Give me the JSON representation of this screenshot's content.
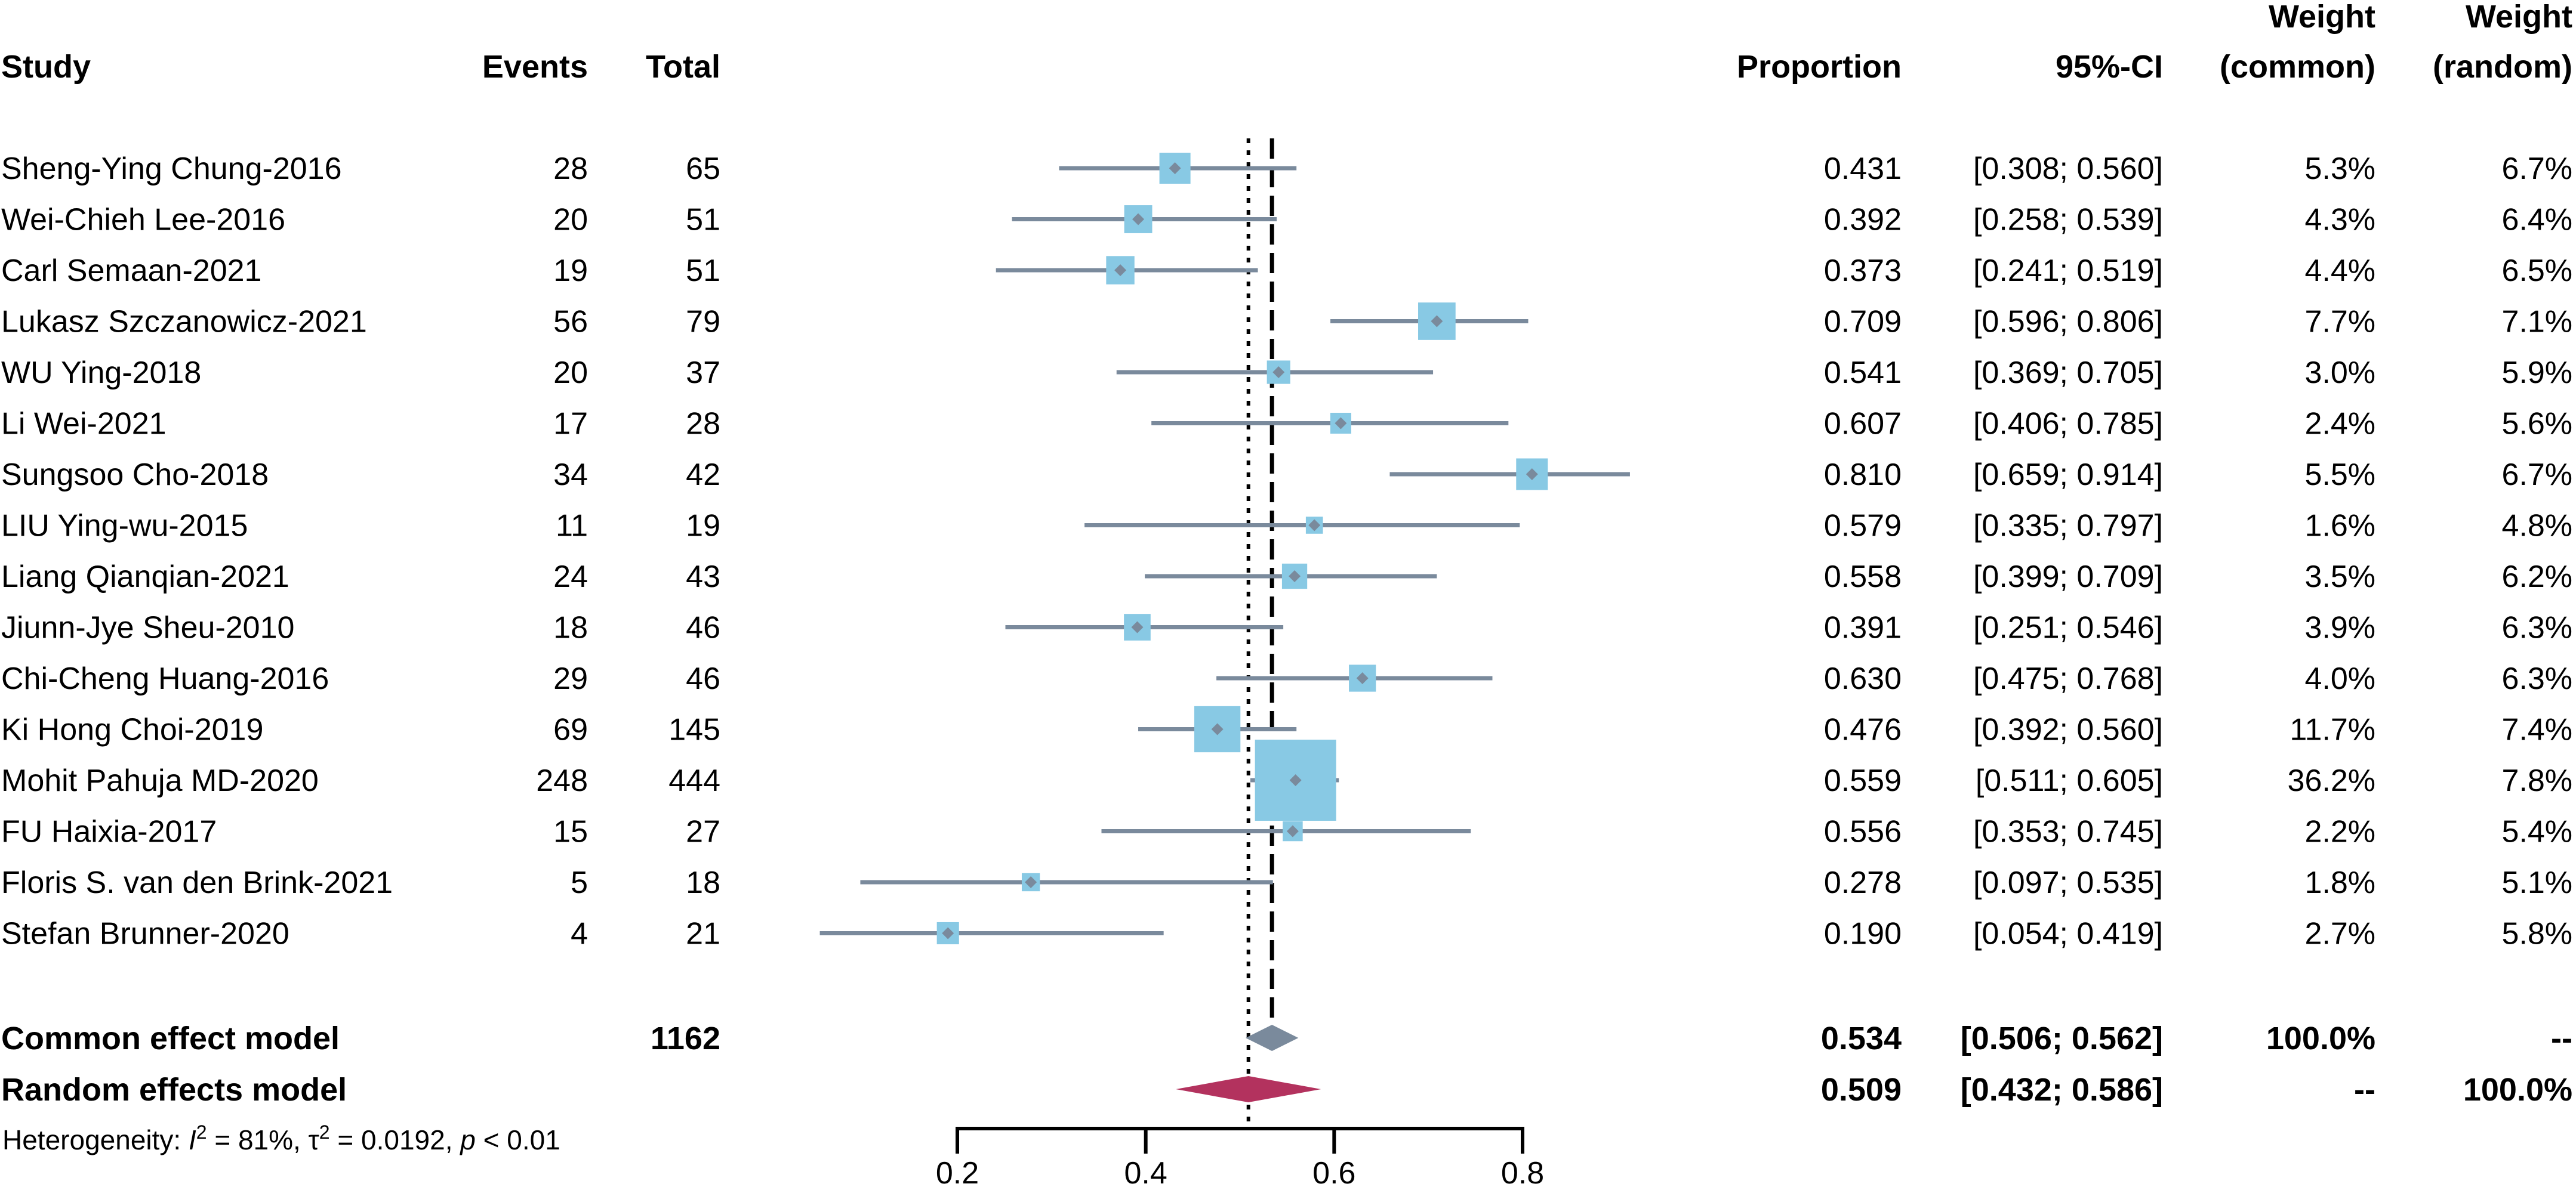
{
  "chart_data": {
    "type": "forest",
    "headers": {
      "study": "Study",
      "events": "Events",
      "total": "Total",
      "proportion": "Proportion",
      "ci": "95%-CI",
      "weight_common_top": "Weight",
      "weight_common_bottom": "(common)",
      "weight_random_top": "Weight",
      "weight_random_bottom": "(random)"
    },
    "xlim": [
      0.2,
      0.8
    ],
    "ticks": [
      0.2,
      0.4,
      0.6,
      0.8
    ],
    "tick_labels": [
      "0.2",
      "0.4",
      "0.6",
      "0.8"
    ],
    "studies": [
      {
        "name": "Sheng-Ying Chung-2016",
        "events": "28",
        "total": "65",
        "prop": 0.431,
        "lo": 0.308,
        "hi": 0.56,
        "prop_text": "0.431",
        "ci_text": "[0.308; 0.560]",
        "w_common": "5.3%",
        "w_random": "6.7%",
        "w": 5.3
      },
      {
        "name": "Wei-Chieh Lee-2016",
        "events": "20",
        "total": "51",
        "prop": 0.392,
        "lo": 0.258,
        "hi": 0.539,
        "prop_text": "0.392",
        "ci_text": "[0.258; 0.539]",
        "w_common": "4.3%",
        "w_random": "6.4%",
        "w": 4.3
      },
      {
        "name": "Carl Semaan-2021",
        "events": "19",
        "total": "51",
        "prop": 0.373,
        "lo": 0.241,
        "hi": 0.519,
        "prop_text": "0.373",
        "ci_text": "[0.241; 0.519]",
        "w_common": "4.4%",
        "w_random": "6.5%",
        "w": 4.4
      },
      {
        "name": "Lukasz Szczanowicz-2021",
        "events": "56",
        "total": "79",
        "prop": 0.709,
        "lo": 0.596,
        "hi": 0.806,
        "prop_text": "0.709",
        "ci_text": "[0.596; 0.806]",
        "w_common": "7.7%",
        "w_random": "7.1%",
        "w": 7.7
      },
      {
        "name": "WU Ying-2018",
        "events": "20",
        "total": "37",
        "prop": 0.541,
        "lo": 0.369,
        "hi": 0.705,
        "prop_text": "0.541",
        "ci_text": "[0.369; 0.705]",
        "w_common": "3.0%",
        "w_random": "5.9%",
        "w": 3.0
      },
      {
        "name": "Li Wei-2021",
        "events": "17",
        "total": "28",
        "prop": 0.607,
        "lo": 0.406,
        "hi": 0.785,
        "prop_text": "0.607",
        "ci_text": "[0.406; 0.785]",
        "w_common": "2.4%",
        "w_random": "5.6%",
        "w": 2.4
      },
      {
        "name": "Sungsoo Cho-2018",
        "events": "34",
        "total": "42",
        "prop": 0.81,
        "lo": 0.659,
        "hi": 0.914,
        "prop_text": "0.810",
        "ci_text": "[0.659; 0.914]",
        "w_common": "5.5%",
        "w_random": "6.7%",
        "w": 5.5
      },
      {
        "name": "LIU Ying-wu-2015",
        "events": "11",
        "total": "19",
        "prop": 0.579,
        "lo": 0.335,
        "hi": 0.797,
        "prop_text": "0.579",
        "ci_text": "[0.335; 0.797]",
        "w_common": "1.6%",
        "w_random": "4.8%",
        "w": 1.6
      },
      {
        "name": "Liang Qianqian-2021",
        "events": "24",
        "total": "43",
        "prop": 0.558,
        "lo": 0.399,
        "hi": 0.709,
        "prop_text": "0.558",
        "ci_text": "[0.399; 0.709]",
        "w_common": "3.5%",
        "w_random": "6.2%",
        "w": 3.5
      },
      {
        "name": "Jiunn-Jye Sheu-2010",
        "events": "18",
        "total": "46",
        "prop": 0.391,
        "lo": 0.251,
        "hi": 0.546,
        "prop_text": "0.391",
        "ci_text": "[0.251; 0.546]",
        "w_common": "3.9%",
        "w_random": "6.3%",
        "w": 3.9
      },
      {
        "name": "Chi-Cheng Huang-2016",
        "events": "29",
        "total": "46",
        "prop": 0.63,
        "lo": 0.475,
        "hi": 0.768,
        "prop_text": "0.630",
        "ci_text": "[0.475; 0.768]",
        "w_common": "4.0%",
        "w_random": "6.3%",
        "w": 4.0
      },
      {
        "name": "Ki Hong Choi-2019",
        "events": "69",
        "total": "145",
        "prop": 0.476,
        "lo": 0.392,
        "hi": 0.56,
        "prop_text": "0.476",
        "ci_text": "[0.392; 0.560]",
        "w_common": "11.7%",
        "w_random": "7.4%",
        "w": 11.7
      },
      {
        "name": "Mohit Pahuja MD-2020",
        "events": "248",
        "total": "444",
        "prop": 0.559,
        "lo": 0.511,
        "hi": 0.605,
        "prop_text": "0.559",
        "ci_text": "[0.511; 0.605]",
        "w_common": "36.2%",
        "w_random": "7.8%",
        "w": 36.2
      },
      {
        "name": "FU Haixia-2017",
        "events": "15",
        "total": "27",
        "prop": 0.556,
        "lo": 0.353,
        "hi": 0.745,
        "prop_text": "0.556",
        "ci_text": "[0.353; 0.745]",
        "w_common": "2.2%",
        "w_random": "5.4%",
        "w": 2.2
      },
      {
        "name": "Floris S. van den Brink-2021",
        "events": "5",
        "total": "18",
        "prop": 0.278,
        "lo": 0.097,
        "hi": 0.535,
        "prop_text": "0.278",
        "ci_text": "[0.097; 0.535]",
        "w_common": "1.8%",
        "w_random": "5.1%",
        "w": 1.8
      },
      {
        "name": "Stefan Brunner-2020",
        "events": "4",
        "total": "21",
        "prop": 0.19,
        "lo": 0.054,
        "hi": 0.419,
        "prop_text": "0.190",
        "ci_text": "[0.054; 0.419]",
        "w_common": "2.7%",
        "w_random": "5.8%",
        "w": 2.7
      }
    ],
    "summary": {
      "common": {
        "name": "Common effect model",
        "total": "1162",
        "prop": 0.534,
        "lo": 0.506,
        "hi": 0.562,
        "prop_text": "0.534",
        "ci_text": "[0.506; 0.562]",
        "w_common": "100.0%",
        "w_random": "--"
      },
      "random": {
        "name": "Random effects model",
        "prop": 0.509,
        "lo": 0.432,
        "hi": 0.586,
        "prop_text": "0.509",
        "ci_text": "[0.432; 0.586]",
        "w_common": "--",
        "w_random": "100.0%"
      }
    },
    "heterogeneity": {
      "prefix": "Heterogeneity: ",
      "i_sym": "I",
      "sq": "2",
      "i_val": " = 81%, ",
      "tau_sym": "τ",
      "tau_val": " = 0.0192, ",
      "p_sym": "p",
      "p_val": " < 0.01"
    },
    "colors": {
      "ci_line": "#7a8a9c",
      "square": "#88c9e4",
      "point": "#7a8a9c",
      "common_diamond": "#7a8a9c",
      "random_diamond": "#b3325e",
      "axis": "#000000"
    }
  }
}
